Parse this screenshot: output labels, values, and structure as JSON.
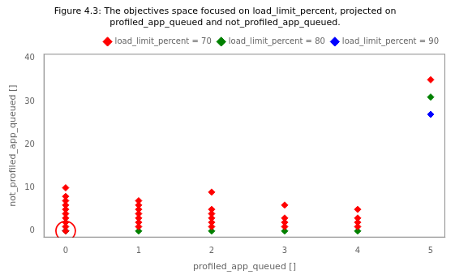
{
  "chart_data": {
    "type": "scatter",
    "title": "Figure 4.3: The objectives space focused on load_limit_percent, projected on profiled_app_queued and not_profiled_app_queued.",
    "x_label": "profiled_app_queued []",
    "y_label": "not_profiled_app_queued []",
    "xlim": [
      -0.3,
      5.2
    ],
    "ylim": [
      -1.5,
      41
    ],
    "xticks": [
      0,
      1,
      2,
      3,
      4,
      5
    ],
    "yticks": [
      0,
      10,
      20,
      30,
      40
    ],
    "grid": false,
    "legend": "upper right",
    "marker": "diamond",
    "circle_center": [
      0,
      0
    ],
    "circle_color": "red",
    "series": [
      {
        "name": "load_limit_percent = 70",
        "color": "red",
        "values": [
          [
            0,
            0
          ],
          [
            0,
            1
          ],
          [
            0,
            2
          ],
          [
            0,
            3
          ],
          [
            0,
            4
          ],
          [
            0,
            5
          ],
          [
            0,
            6
          ],
          [
            0,
            7
          ],
          [
            0,
            8
          ],
          [
            0,
            10
          ],
          [
            1,
            1
          ],
          [
            1,
            2
          ],
          [
            1,
            3
          ],
          [
            1,
            4
          ],
          [
            1,
            5
          ],
          [
            1,
            6
          ],
          [
            1,
            7
          ],
          [
            2,
            1
          ],
          [
            2,
            2
          ],
          [
            2,
            3
          ],
          [
            2,
            4
          ],
          [
            2,
            5
          ],
          [
            2,
            9
          ],
          [
            3,
            1
          ],
          [
            3,
            2
          ],
          [
            3,
            3
          ],
          [
            3,
            6
          ],
          [
            4,
            1
          ],
          [
            4,
            2
          ],
          [
            4,
            3
          ],
          [
            4,
            5
          ],
          [
            5,
            35
          ]
        ]
      },
      {
        "name": "load_limit_percent = 80",
        "color": "green",
        "values": [
          [
            0,
            0
          ],
          [
            1,
            0
          ],
          [
            2,
            0
          ],
          [
            3,
            0
          ],
          [
            4,
            0
          ],
          [
            5,
            31
          ]
        ]
      },
      {
        "name": "load_limit_percent = 90",
        "color": "blue",
        "values": [
          [
            0,
            0
          ],
          [
            5,
            27
          ]
        ]
      }
    ]
  }
}
